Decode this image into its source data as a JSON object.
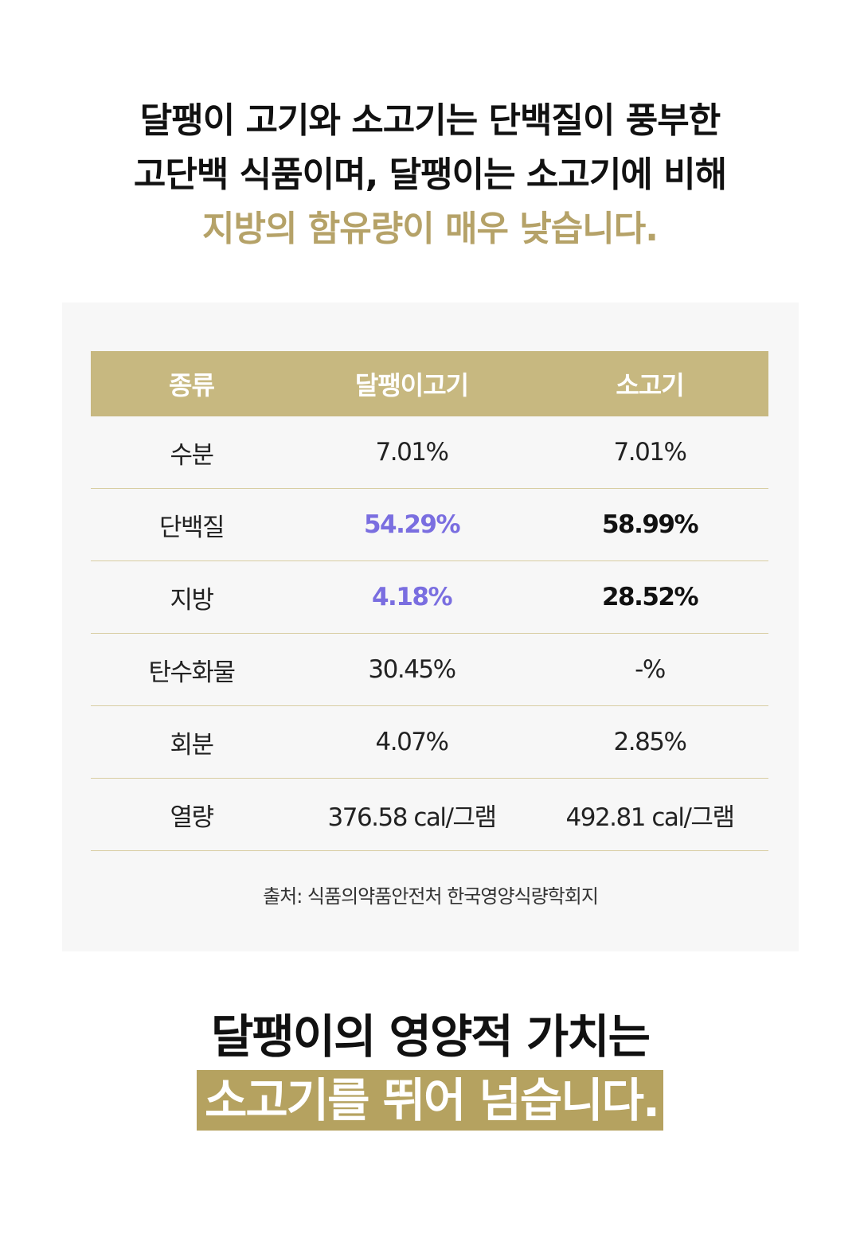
{
  "intro": {
    "line1": "달팽이 고기와 소고기는 단백질이 풍부한",
    "line2": "고단백 식품이며, 달팽이는 소고기에 비해",
    "line3": "지방의 함유량이 매우 낮습니다."
  },
  "colors": {
    "accent_text": "#b5a268",
    "header_bg": "#c7b880",
    "panel_bg": "#f7f7f7",
    "highlight_bg": "#b5a260",
    "purple_value": "#7a6ee0"
  },
  "table": {
    "headers": [
      "종류",
      "달팽이고기",
      "소고기"
    ],
    "rows": [
      {
        "label": "수분",
        "snail": "7.01%",
        "beef": "7.01%"
      },
      {
        "label": "단백질",
        "snail": "54.29%",
        "beef": "58.99%"
      },
      {
        "label": "지방",
        "snail": "4.18%",
        "beef": "28.52%"
      },
      {
        "label": "탄수화물",
        "snail": "30.45%",
        "beef": "-%"
      },
      {
        "label": "회분",
        "snail": "4.07%",
        "beef": "2.85%"
      },
      {
        "label": "열량",
        "snail": "376.58 cal/그램",
        "beef": "492.81 cal/그램"
      }
    ],
    "source": "출처: 식품의약품안전처 한국영양식량학회지"
  },
  "outro": {
    "line1": "달팽이의 영양적 가치는",
    "line2": "소고기를 뛰어 넘습니다."
  }
}
